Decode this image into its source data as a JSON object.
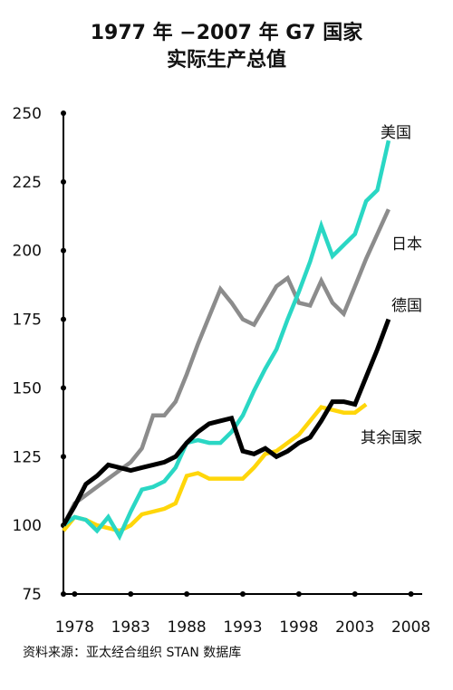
{
  "title_line1": "1977 年 −2007 年 G7 国家",
  "title_line2": "实际生产总值",
  "source": "资料来源：亚太经合组织 STAN 数据库",
  "chart_data": {
    "type": "line",
    "title": "1977 年 −2007 年 G7 国家 实际生产总值",
    "xlabel": "",
    "ylabel": "",
    "xlim": [
      1977,
      2009
    ],
    "ylim": [
      75,
      250
    ],
    "x_ticks": [
      1978,
      1983,
      1988,
      1993,
      1998,
      2003,
      2008
    ],
    "x_tick_labels": [
      "1978",
      "1983",
      "1988",
      "1993",
      "1998",
      "2003",
      "2008"
    ],
    "y_ticks": [
      75,
      100,
      125,
      150,
      175,
      200,
      225,
      250
    ],
    "grid": false,
    "legend": "inline labels at line ends",
    "series": [
      {
        "name": "美国",
        "color": "#2ad7c4",
        "x": [
          1977,
          1978,
          1979,
          1980,
          1981,
          1982,
          1983,
          1984,
          1985,
          1986,
          1987,
          1988,
          1989,
          1990,
          1991,
          1992,
          1993,
          1994,
          1995,
          1996,
          1997,
          1998,
          1999,
          2000,
          2001,
          2002,
          2003,
          2004,
          2005,
          2006
        ],
        "y": [
          100,
          103,
          102,
          98,
          103,
          96,
          105,
          113,
          114,
          116,
          121,
          130,
          131,
          130,
          130,
          134,
          140,
          149,
          157,
          164,
          175,
          185,
          196,
          209,
          198,
          202,
          206,
          218,
          222,
          240
        ]
      },
      {
        "name": "日本",
        "color": "#8c8c8c",
        "x": [
          1977,
          1978,
          1979,
          1980,
          1981,
          1982,
          1983,
          1984,
          1985,
          1986,
          1987,
          1988,
          1989,
          1990,
          1991,
          1992,
          1993,
          1994,
          1995,
          1996,
          1997,
          1998,
          1999,
          2000,
          2001,
          2002,
          2003,
          2004,
          2005,
          2006
        ],
        "y": [
          100,
          108,
          111,
          114,
          117,
          120,
          123,
          128,
          140,
          140,
          145,
          155,
          166,
          176,
          186,
          181,
          175,
          173,
          180,
          187,
          190,
          181,
          180,
          189,
          181,
          177,
          187,
          197,
          206,
          215
        ]
      },
      {
        "name": "德国",
        "color": "#000000",
        "x": [
          1977,
          1978,
          1979,
          1980,
          1981,
          1982,
          1983,
          1984,
          1985,
          1986,
          1987,
          1988,
          1989,
          1990,
          1991,
          1992,
          1993,
          1994,
          1995,
          1996,
          1997,
          1998,
          1999,
          2000,
          2001,
          2002,
          2003,
          2004,
          2005,
          2006
        ],
        "y": [
          100,
          107,
          115,
          118,
          122,
          121,
          120,
          121,
          122,
          123,
          125,
          130,
          134,
          137,
          138,
          139,
          127,
          126,
          128,
          125,
          127,
          130,
          132,
          138,
          145,
          145,
          144,
          154,
          164,
          175
        ]
      },
      {
        "name": "其余国家",
        "color": "#ffd60a",
        "x": [
          1977,
          1978,
          1979,
          1980,
          1981,
          1982,
          1983,
          1984,
          1985,
          1986,
          1987,
          1988,
          1989,
          1990,
          1991,
          1992,
          1993,
          1994,
          1995,
          1996,
          1997,
          1998,
          1999,
          2000,
          2001,
          2002,
          2003,
          2004
        ],
        "y": [
          98,
          103,
          102,
          100,
          99,
          98,
          100,
          104,
          105,
          106,
          108,
          118,
          119,
          117,
          117,
          117,
          117,
          121,
          126,
          127,
          130,
          133,
          138,
          143,
          142,
          141,
          141,
          144
        ]
      }
    ]
  }
}
